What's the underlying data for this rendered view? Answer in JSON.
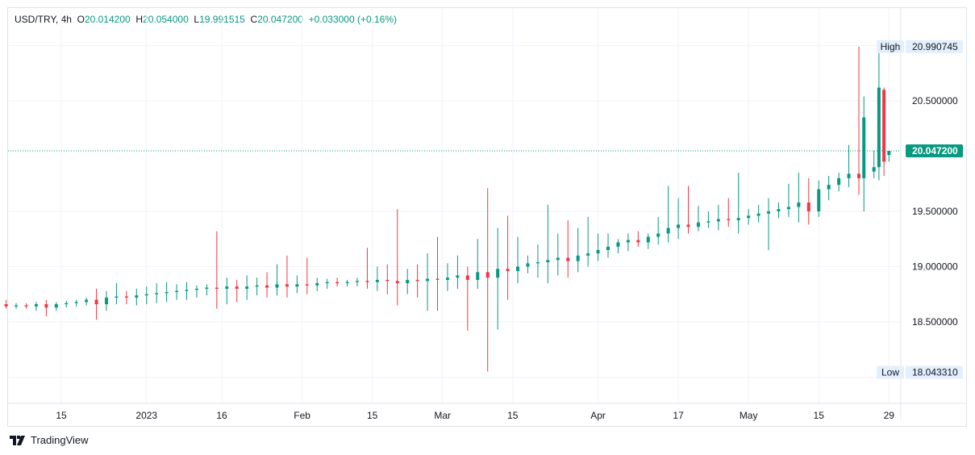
{
  "header": {
    "symbol": "USD/TRY, 4h",
    "o_label": "O",
    "o": "20.014200",
    "h_label": "H",
    "h": "20.054000",
    "l_label": "L",
    "l": "19.991515",
    "c_label": "C",
    "c": "20.047200",
    "change": "+0.033000 (+0.16%)"
  },
  "branding": {
    "name": "TradingView"
  },
  "colors": {
    "up": "#089981",
    "down": "#f23645",
    "grid": "#f0f3fa"
  },
  "chart_data": {
    "type": "candlestick",
    "title": "USD/TRY, 4h",
    "x_ticks": [
      {
        "day": 11,
        "label": "15"
      },
      {
        "day": 28,
        "label": "2023"
      },
      {
        "day": 43,
        "label": "16"
      },
      {
        "day": 59,
        "label": "Feb"
      },
      {
        "day": 73,
        "label": "15"
      },
      {
        "day": 87,
        "label": "Mar"
      },
      {
        "day": 101,
        "label": "15"
      },
      {
        "day": 118,
        "label": "Apr"
      },
      {
        "day": 134,
        "label": "17"
      },
      {
        "day": 148,
        "label": "May"
      },
      {
        "day": 162,
        "label": "15"
      },
      {
        "day": 176,
        "label": "29"
      }
    ],
    "y_ticks": [
      "20.500000",
      "19.500000",
      "19.000000",
      "18.500000"
    ],
    "y_tick_values": [
      20.5,
      19.5,
      19.0,
      18.5
    ],
    "ylim": [
      17.84,
      21.38
    ],
    "last_price": 20.0472,
    "last_price_label": "20.047200",
    "high": {
      "label": "High",
      "value": 20.990745,
      "text": "20.990745"
    },
    "low": {
      "label": "Low",
      "value": 18.04331,
      "text": "18.043310"
    },
    "grid": true,
    "candles": [
      [
        0,
        18.66,
        18.7,
        18.62,
        18.64
      ],
      [
        2,
        18.64,
        18.67,
        18.62,
        18.65
      ],
      [
        4,
        18.65,
        18.67,
        18.62,
        18.64
      ],
      [
        6,
        18.64,
        18.68,
        18.6,
        18.66
      ],
      [
        8,
        18.66,
        18.7,
        18.55,
        18.63
      ],
      [
        10,
        18.63,
        18.68,
        18.6,
        18.66
      ],
      [
        12,
        18.66,
        18.69,
        18.63,
        18.67
      ],
      [
        14,
        18.67,
        18.7,
        18.64,
        18.68
      ],
      [
        16,
        18.68,
        18.72,
        18.65,
        18.7
      ],
      [
        18,
        18.7,
        18.8,
        18.52,
        18.66
      ],
      [
        20,
        18.66,
        18.78,
        18.6,
        18.72
      ],
      [
        22,
        18.72,
        18.85,
        18.66,
        18.73
      ],
      [
        24,
        18.73,
        18.78,
        18.66,
        18.72
      ],
      [
        26,
        18.72,
        18.8,
        18.65,
        18.74
      ],
      [
        28,
        18.74,
        18.82,
        18.66,
        18.75
      ],
      [
        30,
        18.75,
        18.85,
        18.67,
        18.76
      ],
      [
        32,
        18.76,
        18.86,
        18.68,
        18.77
      ],
      [
        34,
        18.77,
        18.84,
        18.7,
        18.78
      ],
      [
        36,
        18.78,
        18.86,
        18.7,
        18.79
      ],
      [
        38,
        18.79,
        18.83,
        18.72,
        18.8
      ],
      [
        40,
        18.8,
        18.84,
        18.74,
        18.81
      ],
      [
        42,
        18.81,
        19.32,
        18.62,
        18.8
      ],
      [
        44,
        18.8,
        18.9,
        18.66,
        18.82
      ],
      [
        46,
        18.82,
        18.88,
        18.68,
        18.8
      ],
      [
        48,
        18.8,
        18.92,
        18.7,
        18.82
      ],
      [
        50,
        18.82,
        18.9,
        18.74,
        18.83
      ],
      [
        52,
        18.83,
        18.95,
        18.72,
        18.81
      ],
      [
        54,
        18.81,
        19.02,
        18.74,
        18.84
      ],
      [
        56,
        18.84,
        19.1,
        18.72,
        18.82
      ],
      [
        58,
        18.82,
        18.92,
        18.76,
        18.84
      ],
      [
        60,
        18.84,
        19.08,
        18.75,
        18.83
      ],
      [
        62,
        18.83,
        18.9,
        18.78,
        18.85
      ],
      [
        64,
        18.85,
        18.89,
        18.8,
        18.86
      ],
      [
        66,
        18.86,
        18.9,
        18.82,
        18.85
      ],
      [
        68,
        18.85,
        18.88,
        18.82,
        18.86
      ],
      [
        70,
        18.86,
        18.9,
        18.82,
        18.87
      ],
      [
        72,
        18.87,
        19.17,
        18.8,
        18.86
      ],
      [
        74,
        18.86,
        19.0,
        18.78,
        18.88
      ],
      [
        76,
        18.88,
        19.02,
        18.75,
        18.87
      ],
      [
        78,
        18.87,
        19.52,
        18.65,
        18.85
      ],
      [
        80,
        18.85,
        18.98,
        18.75,
        18.88
      ],
      [
        82,
        18.88,
        19.02,
        18.72,
        18.87
      ],
      [
        84,
        18.87,
        19.12,
        18.6,
        18.89
      ],
      [
        86,
        18.89,
        19.27,
        18.6,
        18.88
      ],
      [
        88,
        18.88,
        19.03,
        18.78,
        18.9
      ],
      [
        90,
        18.9,
        19.1,
        18.8,
        18.92
      ],
      [
        92,
        18.92,
        19.0,
        18.42,
        18.88
      ],
      [
        94,
        18.88,
        19.25,
        18.8,
        18.95
      ],
      [
        96,
        18.95,
        19.71,
        18.05,
        18.9
      ],
      [
        98,
        18.9,
        19.35,
        18.43,
        18.98
      ],
      [
        100,
        18.98,
        19.46,
        18.7,
        18.96
      ],
      [
        102,
        18.96,
        19.27,
        18.85,
        19.0
      ],
      [
        104,
        19.0,
        19.1,
        18.94,
        19.03
      ],
      [
        106,
        19.03,
        19.2,
        18.9,
        19.04
      ],
      [
        108,
        19.04,
        19.56,
        18.85,
        19.06
      ],
      [
        110,
        19.06,
        19.3,
        18.92,
        19.08
      ],
      [
        112,
        19.08,
        19.42,
        18.9,
        19.05
      ],
      [
        114,
        19.05,
        19.35,
        18.95,
        19.1
      ],
      [
        116,
        19.1,
        19.45,
        19.0,
        19.12
      ],
      [
        118,
        19.12,
        19.3,
        19.05,
        19.15
      ],
      [
        120,
        19.15,
        19.3,
        19.08,
        19.18
      ],
      [
        122,
        19.18,
        19.25,
        19.12,
        19.22
      ],
      [
        124,
        19.22,
        19.3,
        19.14,
        19.24
      ],
      [
        126,
        19.24,
        19.32,
        19.18,
        19.22
      ],
      [
        128,
        19.22,
        19.3,
        19.16,
        19.27
      ],
      [
        130,
        19.27,
        19.45,
        19.2,
        19.3
      ],
      [
        132,
        19.3,
        19.73,
        19.22,
        19.35
      ],
      [
        134,
        19.35,
        19.62,
        19.25,
        19.38
      ],
      [
        136,
        19.38,
        19.73,
        19.3,
        19.36
      ],
      [
        138,
        19.36,
        19.55,
        19.32,
        19.4
      ],
      [
        140,
        19.4,
        19.5,
        19.35,
        19.41
      ],
      [
        142,
        19.41,
        19.56,
        19.33,
        19.43
      ],
      [
        144,
        19.43,
        19.62,
        19.36,
        19.42
      ],
      [
        146,
        19.42,
        19.85,
        19.3,
        19.44
      ],
      [
        148,
        19.44,
        19.52,
        19.38,
        19.46
      ],
      [
        150,
        19.46,
        19.56,
        19.4,
        19.48
      ],
      [
        152,
        19.48,
        19.62,
        19.15,
        19.5
      ],
      [
        154,
        19.5,
        19.58,
        19.44,
        19.52
      ],
      [
        156,
        19.52,
        19.75,
        19.45,
        19.54
      ],
      [
        158,
        19.54,
        19.85,
        19.4,
        19.58
      ],
      [
        160,
        19.58,
        19.8,
        19.38,
        19.5
      ],
      [
        162,
        19.5,
        19.78,
        19.45,
        19.7
      ],
      [
        164,
        19.7,
        19.82,
        19.6,
        19.74
      ],
      [
        166,
        19.74,
        19.85,
        19.68,
        19.8
      ],
      [
        168,
        19.8,
        20.1,
        19.72,
        19.84
      ],
      [
        170,
        19.84,
        20.99,
        19.65,
        19.8
      ],
      [
        171,
        19.8,
        20.54,
        19.5,
        20.35
      ],
      [
        173,
        19.86,
        20.05,
        19.8,
        19.9
      ],
      [
        174,
        19.9,
        20.99,
        19.78,
        20.62
      ],
      [
        175,
        20.6,
        20.62,
        19.82,
        19.95
      ],
      [
        176,
        20.01,
        20.05,
        19.95,
        20.047
      ]
    ]
  }
}
